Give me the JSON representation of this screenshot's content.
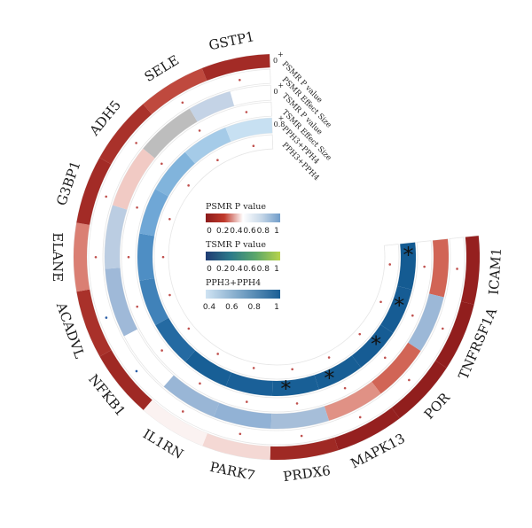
{
  "chart_data": {
    "type": "circos",
    "genes": [
      "ICAM1",
      "TNFRSF1A",
      "POR",
      "MAPK13",
      "PRDX6",
      "PARK7",
      "IL1RN",
      "NFKB1",
      "ACADVL",
      "ELANE",
      "G3BP1",
      "ADH5",
      "SELE",
      "GSTP1"
    ],
    "rings": [
      {
        "name": "PSMR P value",
        "tick_min": "0",
        "tick_max": "+",
        "values": [
          0.02,
          0.01,
          0.01,
          0.02,
          0.05,
          0.35,
          0.42,
          0.05,
          0.08,
          0.25,
          0.06,
          0.08,
          0.15,
          0.06
        ]
      },
      {
        "name": "PSMR Effect Size",
        "colors": [
          "#ffffff",
          "#ffffff",
          "#ffffff",
          "#ffffff",
          "#ffffff",
          "#ffffff",
          "#ffffff",
          "#ffffff",
          "#ffffff",
          "#ffffff",
          "#ffffff",
          "#ffffff",
          "#ffffff",
          "#ffffff"
        ]
      },
      {
        "name": "TSMR P value",
        "tick_min": "0",
        "tick_max": "+",
        "values": [
          0.05,
          0.9,
          0.05,
          0.15,
          0.82,
          0.98,
          0.92,
          null,
          null,
          null,
          null,
          null,
          null,
          null
        ],
        "extra_cells": [
          {
            "from": 8.1,
            "to": 9.3,
            "v": 0.88
          },
          {
            "from": 9.3,
            "to": 10.4,
            "v": 0.72
          },
          {
            "from": 10.4,
            "to": 11.5,
            "v": 0.28
          },
          {
            "from": 11.5,
            "to": 12.55,
            "v": 0.48
          },
          {
            "from": 12.55,
            "to": 13.3,
            "v": 0.68
          }
        ],
        "extra_grey": {
          "from": 11.5,
          "to": 12.55
        }
      },
      {
        "name": "TSMR Effect Size",
        "colors": [
          "#ffffff",
          "#ffffff",
          "#ffffff",
          "#ffffff",
          "#ffffff",
          "#ffffff",
          "#ffffff",
          "#ffffff",
          "#ffffff",
          "#ffffff",
          "#ffffff",
          "#ffffff",
          "#ffffff",
          "#ffffff"
        ]
      },
      {
        "name": "PPH3+PPH4",
        "tick_min": "0.8",
        "tick_max": "+",
        "values": [
          0.99,
          0.98,
          0.98,
          0.97,
          0.96,
          0.95,
          0.96,
          0.87,
          0.75,
          0.7,
          0.6,
          0.55,
          0.45,
          0.35
        ]
      },
      {
        "name": "PPH3+PPH4"
      }
    ],
    "stars": [
      0.25,
      1.4,
      2.4,
      3.7,
      4.7
    ],
    "legends": [
      {
        "title": "PSMR P value",
        "ticks": [
          "0",
          "0.2",
          "0.4",
          "0.6",
          "0.8",
          "1"
        ],
        "colors": [
          "#8b1a1a",
          "#c0392b",
          "#ffffff",
          "#c6d7e8",
          "#6f9cc9"
        ]
      },
      {
        "title": "TSMR P value",
        "ticks": [
          "0",
          "0.2",
          "0.4",
          "0.6",
          "0.8",
          "1"
        ],
        "colors": [
          "#1f3b73",
          "#2b7a8a",
          "#5aa66a",
          "#b7d34a"
        ]
      },
      {
        "title": "PPH3+PPH4",
        "ticks": [
          "0.4",
          "0.6",
          "0.8",
          "1"
        ],
        "colors": [
          "#cfe3f3",
          "#1a5e94"
        ]
      }
    ]
  }
}
